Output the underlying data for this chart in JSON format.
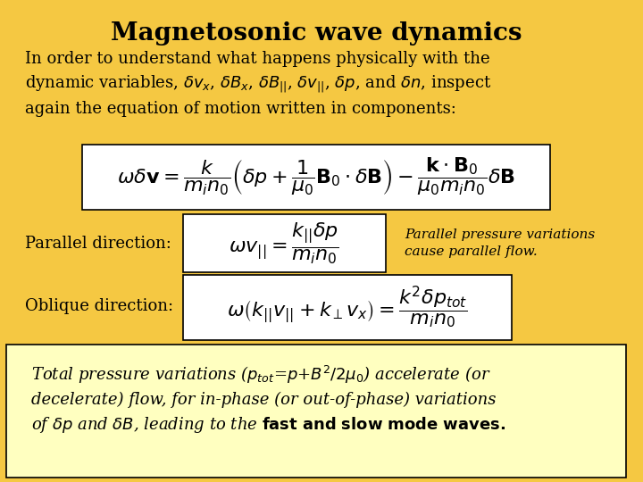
{
  "background_color": "#F5C842",
  "title": "Magnetosonic wave dynamics",
  "title_fontsize": 20,
  "title_fontweight": "bold",
  "body_text": "In order to understand what happens physically with the\ndynamic variables, $\\delta v_x$, $\\delta B_x$, $\\delta B_{||}$, $\\delta v_{||}$, $\\delta p$, and $\\delta n$, inspect\nagain the equation of motion written in components:",
  "eq_main": "$\\omega\\delta\\mathbf{v} = \\dfrac{k}{m_i n_0}\\left(\\delta p + \\dfrac{1}{\\mu_0}\\mathbf{B}_0 \\cdot \\delta\\mathbf{B}\\right) - \\dfrac{\\mathbf{k} \\cdot \\mathbf{B}_0}{\\mu_0 m_i n_0}\\delta\\mathbf{B}$",
  "parallel_label": "Parallel direction:",
  "eq_parallel": "$\\omega v_{||} = \\dfrac{k_{||}\\delta p}{m_i n_0}$",
  "parallel_note": "Parallel pressure variations\ncause parallel flow.",
  "oblique_label": "Oblique direction:",
  "eq_oblique": "$\\omega\\left(k_{||}v_{||} + k_{\\perp}v_x\\right) = \\dfrac{k^2\\delta p_{tot}}{m_i n_0}$",
  "footer_bg": "#FFFFC0",
  "footer_text": "Total pressure variations ($p_{tot}$=$p$+$B^2/2\\mu_0$) accelerate (or\ndecelerate) flow, for in-phase (or out-of-phase) variations\nof $\\delta p$ and $\\delta B$, leading to the \\textbf{fast and slow mode waves.}",
  "box_color": "#FFFFFF",
  "body_fontsize": 13,
  "eq_fontsize": 16,
  "label_fontsize": 13,
  "note_fontsize": 11,
  "footer_fontsize": 13
}
